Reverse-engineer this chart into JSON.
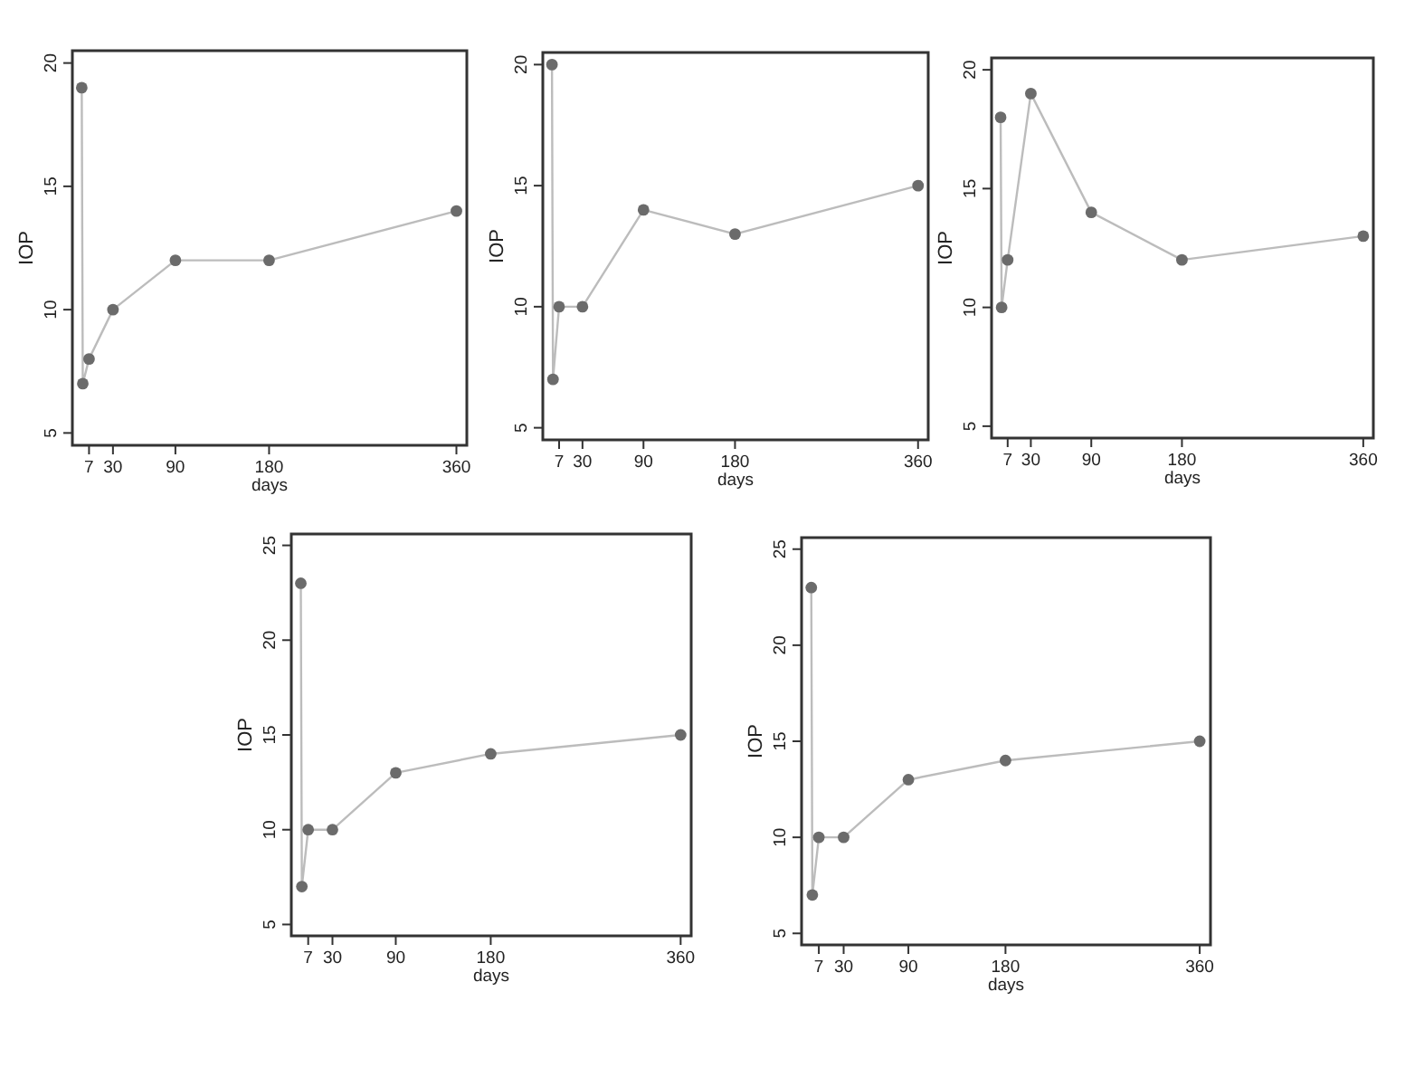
{
  "chart_data": [
    {
      "type": "line",
      "xlabel": "days",
      "ylabel": "IOP",
      "xlim": [
        -9,
        370
      ],
      "ylim": [
        4.5,
        20.5
      ],
      "xticks": [
        7,
        30,
        90,
        180,
        360
      ],
      "yticks": [
        5,
        10,
        15,
        20
      ],
      "marker": "circle",
      "line_style": "solid",
      "x": [
        0,
        1,
        7,
        30,
        90,
        180,
        360
      ],
      "series": [
        {
          "color": "#6b6b6b",
          "values": [
            19,
            7,
            8,
            10,
            12,
            12,
            14
          ]
        }
      ]
    },
    {
      "type": "line",
      "xlabel": "days",
      "ylabel": "IOP",
      "xlim": [
        -9,
        370
      ],
      "ylim": [
        4.5,
        20.5
      ],
      "xticks": [
        7,
        30,
        90,
        180,
        360
      ],
      "yticks": [
        5,
        10,
        15,
        20
      ],
      "marker": "circle",
      "line_style": "solid",
      "x": [
        0,
        1,
        7,
        30,
        90,
        180,
        360
      ],
      "series": [
        {
          "color": "#6b6b6b",
          "values": [
            20,
            7,
            10,
            10,
            14,
            13,
            15
          ]
        }
      ]
    },
    {
      "type": "line",
      "xlabel": "days",
      "ylabel": "IOP",
      "xlim": [
        -9,
        370
      ],
      "ylim": [
        4.5,
        20.5
      ],
      "xticks": [
        7,
        30,
        90,
        180,
        360
      ],
      "yticks": [
        5,
        10,
        15,
        20
      ],
      "marker": "circle",
      "line_style": "solid",
      "x": [
        0,
        1,
        7,
        30,
        90,
        180,
        360
      ],
      "series": [
        {
          "color": "#6b6b6b",
          "values": [
            18,
            10,
            12,
            19,
            14,
            12,
            13
          ]
        }
      ]
    },
    {
      "type": "line",
      "xlabel": "days",
      "ylabel": "IOP",
      "xlim": [
        -9,
        370
      ],
      "ylim": [
        4.4,
        25.6
      ],
      "xticks": [
        7,
        30,
        90,
        180,
        360
      ],
      "yticks": [
        5,
        10,
        15,
        20,
        25
      ],
      "marker": "circle",
      "line_style": "solid",
      "x": [
        0,
        1,
        7,
        30,
        90,
        180,
        360
      ],
      "series": [
        {
          "color": "#6b6b6b",
          "values": [
            23,
            7,
            10,
            10,
            13,
            14,
            15
          ]
        }
      ]
    },
    {
      "type": "line",
      "xlabel": "days",
      "ylabel": "IOP",
      "xlim": [
        -9,
        370
      ],
      "ylim": [
        4.4,
        25.6
      ],
      "xticks": [
        7,
        30,
        90,
        180,
        360
      ],
      "yticks": [
        5,
        10,
        15,
        20,
        25
      ],
      "marker": "circle",
      "line_style": "solid",
      "x": [
        0,
        1,
        7,
        30,
        90,
        180,
        360
      ],
      "series": [
        {
          "color": "#6b6b6b",
          "values": [
            23,
            7,
            10,
            10,
            13,
            14,
            15
          ]
        }
      ]
    }
  ]
}
